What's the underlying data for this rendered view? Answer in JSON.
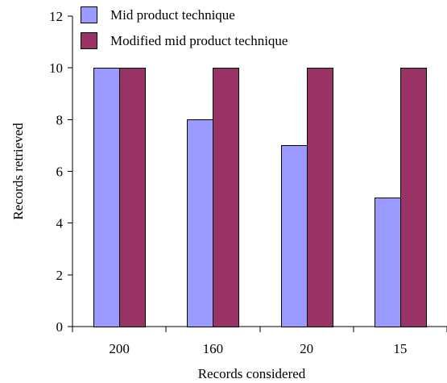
{
  "chart_data": {
    "type": "bar",
    "title": "",
    "xlabel": "Records considered",
    "ylabel": "Records retrieved",
    "categories": [
      "200",
      "160",
      "20",
      "15"
    ],
    "series": [
      {
        "name": "Mid product technique",
        "values": [
          10,
          8,
          7,
          5
        ],
        "color": "#9999ff"
      },
      {
        "name": "Modified mid product technique",
        "values": [
          10,
          10,
          10,
          10
        ],
        "color": "#993366"
      }
    ],
    "ylim": [
      0,
      12
    ],
    "yticks": [
      "0",
      "2",
      "4",
      "6",
      "8",
      "10",
      "12"
    ],
    "grid": false,
    "legend": "top-left"
  }
}
